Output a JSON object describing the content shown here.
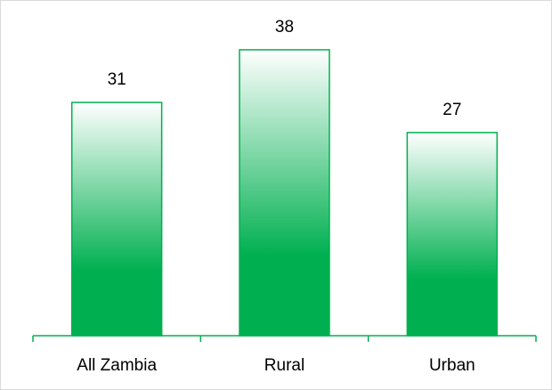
{
  "chart_data": {
    "type": "bar",
    "categories": [
      "All Zambia",
      "Rural",
      "Urban"
    ],
    "values": [
      31,
      38,
      27
    ],
    "color": "#00b050",
    "ylim": [
      0,
      40
    ]
  }
}
